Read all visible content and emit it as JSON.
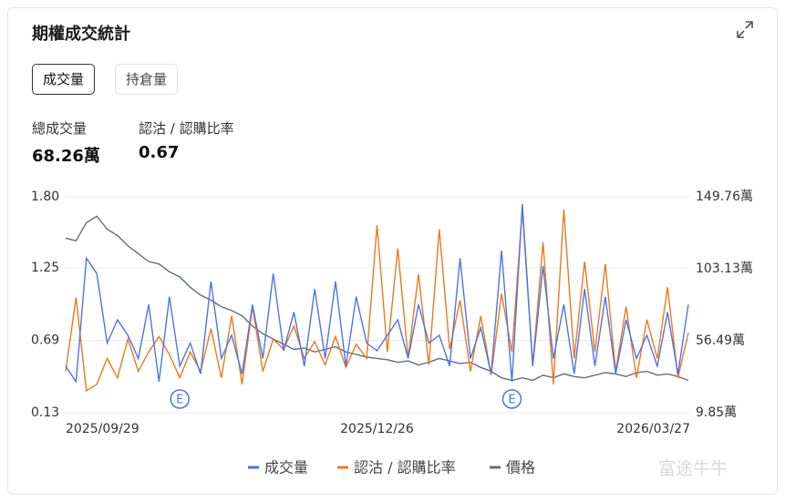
{
  "header": {
    "title": "期權成交統計"
  },
  "tabs": [
    "成交量",
    "持倉量"
  ],
  "stats": [
    {
      "label": "總成交量",
      "value": "68.26萬"
    },
    {
      "label": "認沽 / 認購比率",
      "value": "0.67"
    }
  ],
  "watermark": "富途牛牛",
  "chart_data": {
    "type": "line",
    "categories": [
      "2025/09/29",
      null,
      null,
      null,
      null,
      null,
      null,
      null,
      null,
      null,
      null,
      null,
      null,
      null,
      null,
      null,
      null,
      null,
      null,
      null,
      null,
      null,
      null,
      null,
      null,
      null,
      null,
      null,
      null,
      null,
      "2025/12/26",
      null,
      null,
      null,
      null,
      null,
      null,
      null,
      null,
      null,
      null,
      null,
      null,
      null,
      null,
      null,
      null,
      null,
      null,
      null,
      null,
      null,
      null,
      null,
      null,
      null,
      null,
      null,
      null,
      null,
      "2026/03/27"
    ],
    "ylim": [
      0.13,
      1.8
    ],
    "yticks": [
      0.13,
      0.69,
      1.25,
      {
        "value": 1.8,
        "label": "1.80"
      }
    ],
    "y2lim": [
      9.85,
      149.76
    ],
    "y2ticks": [
      {
        "value": 9.85,
        "label": "9.85萬"
      },
      {
        "value": 56.49,
        "label": "56.49萬"
      },
      {
        "value": 103.13,
        "label": "103.13萬"
      },
      {
        "value": 149.76,
        "label": "149.76萬"
      }
    ],
    "grid": true,
    "annotations": [
      {
        "text": "E",
        "at": 11
      },
      {
        "text": "E",
        "at": 43
      }
    ],
    "series": [
      {
        "name": "成交量",
        "color": "#4f73e8",
        "axis": "y2",
        "values": [
          40,
          30,
          110,
          100,
          55,
          70,
          60,
          45,
          80,
          30,
          85,
          40,
          55,
          35,
          95,
          45,
          60,
          35,
          80,
          45,
          100,
          50,
          75,
          40,
          90,
          45,
          95,
          40,
          85,
          55,
          50,
          60,
          70,
          45,
          80,
          55,
          60,
          40,
          110,
          45,
          65,
          35,
          115,
          30,
          145,
          40,
          105,
          45,
          80,
          35,
          90,
          40,
          85,
          35,
          70,
          45,
          60,
          40,
          75,
          35,
          80
        ]
      },
      {
        "name": "認沽 / 認購比率",
        "color": "#eb7a1e",
        "values": [
          0.45,
          1.02,
          0.3,
          0.35,
          0.55,
          0.4,
          0.7,
          0.45,
          0.6,
          0.72,
          0.58,
          0.4,
          0.6,
          0.45,
          0.78,
          0.4,
          0.88,
          0.35,
          0.95,
          0.45,
          0.7,
          0.62,
          0.8,
          0.55,
          0.68,
          0.5,
          0.72,
          0.48,
          0.66,
          0.55,
          1.58,
          0.6,
          1.4,
          0.55,
          1.2,
          0.5,
          1.55,
          0.62,
          1.0,
          0.45,
          0.88,
          0.42,
          1.05,
          0.6,
          1.7,
          0.5,
          1.45,
          0.35,
          1.7,
          0.55,
          1.3,
          0.6,
          1.28,
          0.45,
          0.95,
          0.4,
          0.85,
          0.55,
          1.1,
          0.4,
          0.75
        ]
      },
      {
        "name": "價格",
        "color": "#646c7c",
        "values": [
          1.48,
          1.46,
          1.6,
          1.65,
          1.55,
          1.5,
          1.42,
          1.36,
          1.3,
          1.28,
          1.22,
          1.18,
          1.1,
          1.04,
          1.0,
          0.95,
          0.92,
          0.88,
          0.8,
          0.74,
          0.7,
          0.66,
          0.62,
          0.63,
          0.6,
          0.62,
          0.64,
          0.6,
          0.58,
          0.56,
          0.55,
          0.54,
          0.52,
          0.53,
          0.5,
          0.52,
          0.55,
          0.53,
          0.51,
          0.52,
          0.48,
          0.45,
          0.4,
          0.38,
          0.4,
          0.38,
          0.42,
          0.4,
          0.43,
          0.41,
          0.4,
          0.42,
          0.44,
          0.43,
          0.41,
          0.44,
          0.45,
          0.42,
          0.43,
          0.41,
          0.38
        ]
      }
    ]
  }
}
